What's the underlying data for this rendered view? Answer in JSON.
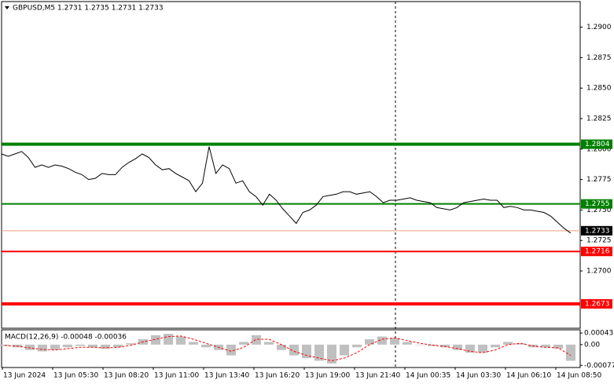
{
  "chart_data": {
    "type": "line",
    "title": "GBPUSD,M5  1.2731 1.2735 1.2731 1.2733",
    "color": "#000000",
    "values": [
      1.2796,
      1.2794,
      1.2796,
      1.2798,
      1.2793,
      1.2785,
      1.2787,
      1.2785,
      1.2787,
      1.2786,
      1.2784,
      1.2781,
      1.2779,
      1.2775,
      1.2776,
      1.278,
      1.2779,
      1.2779,
      1.2785,
      1.2789,
      1.2792,
      1.2796,
      1.2793,
      1.2787,
      1.2783,
      1.2784,
      1.278,
      1.2777,
      1.2774,
      1.2765,
      1.2772,
      1.2802,
      1.278,
      1.2787,
      1.2784,
      1.2772,
      1.2774,
      1.2765,
      1.2761,
      1.2754,
      1.2763,
      1.2758,
      1.2751,
      1.2745,
      1.2739,
      1.2748,
      1.275,
      1.2754,
      1.2761,
      1.2762,
      1.2763,
      1.2765,
      1.2765,
      1.2763,
      1.2764,
      1.2765,
      1.2761,
      1.2756,
      1.2758,
      1.2758,
      1.2759,
      1.276,
      1.2758,
      1.2757,
      1.2756,
      1.2752,
      1.2751,
      1.275,
      1.2752,
      1.2756,
      1.2757,
      1.2758,
      1.2759,
      1.2758,
      1.2758,
      1.2752,
      1.2753,
      1.2752,
      1.275,
      1.275,
      1.2749,
      1.2748,
      1.2745,
      1.274,
      1.2735,
      1.2731
    ],
    "ylim": [
      1.2653,
      1.2921
    ],
    "yticks": [
      {
        "value": 1.29,
        "label": "1.2900"
      },
      1.2875,
      {
        "value": 1.285,
        "label": "1.2850"
      },
      1.2825,
      {
        "value": 1.28,
        "label": "1.2800"
      },
      1.2775,
      {
        "value": 1.275,
        "label": "1.2750"
      },
      1.2725,
      {
        "value": 1.27,
        "label": "1.2700"
      }
    ],
    "levels": [
      {
        "value": 1.2804,
        "color": "#008000"
      },
      {
        "value": 1.2755,
        "color": "#008000"
      },
      {
        "value": 1.2716,
        "color": "#ff0000"
      },
      {
        "value": 1.2673,
        "color": "#ff0000"
      }
    ],
    "current_price": {
      "value": 1.2733,
      "color": "#e8a07c"
    },
    "time_labels": [
      "13 Jun 2024",
      "13 Jun 05:30",
      "13 Jun 08:20",
      "13 Jun 11:00",
      "13 Jun 13:40",
      "13 Jun 16:20",
      "13 Jun 19:00",
      "13 Jun 21:40",
      "14 Jun 00:35",
      "14 Jun 03:30",
      "14 Jun 06:10",
      "14 Jun 08:50"
    ],
    "macd": {
      "title": "MACD(12,26,9) -0.00048 -0.00036",
      "histogram_color": "#c0c0c0",
      "signal_color": "#ff0000",
      "histogram": [
        -5e-05,
        -0.0001,
        -0.0002,
        -0.00025,
        -0.0002,
        -0.0001,
        -5e-05,
        -0.0001,
        -0.00015,
        -0.0001,
        5e-05,
        0.0002,
        0.00035,
        0.0004,
        0.0003,
        0.0001,
        -0.0001,
        -0.0002,
        -0.0004,
        0.0001,
        0.00035,
        0.0001,
        -0.0002,
        -0.0004,
        -0.0005,
        -0.0006,
        -0.0007,
        -0.0004,
        -0.0001,
        0.0002,
        0.0003,
        0.00025,
        0.0001,
        0,
        -5e-05,
        -0.0001,
        -0.0002,
        -0.0003,
        -0.0003,
        -0.0001,
        0.0001,
        5e-05,
        -0.0001,
        -0.0001,
        -0.00015,
        -0.0006
      ],
      "signal": [
        -3e-05,
        -6e-05,
        -0.00012,
        -0.00018,
        -0.0002,
        -0.00015,
        -0.0001,
        -0.0001,
        -0.00012,
        -0.0001,
        -3e-05,
        0.0001,
        0.0002,
        0.0003,
        0.00032,
        0.0002,
        5e-05,
        -0.0001,
        -0.00025,
        -0.0001,
        0.0002,
        0.0002,
        0,
        -0.00025,
        -0.0004,
        -0.0005,
        -0.0006,
        -0.0005,
        -0.0003,
        0,
        0.0002,
        0.00025,
        0.00015,
        5e-05,
        -2e-05,
        -7e-05,
        -0.00015,
        -0.00025,
        -0.0003,
        -0.0002,
        0,
        5e-05,
        -5e-05,
        -0.0001,
        -0.00012,
        -0.0004
      ],
      "ylim": [
        -0.00085,
        0.00055
      ],
      "yticks": [
        0.00043,
        {
          "value": 0,
          "label": "0.00"
        },
        -0.00077
      ]
    }
  }
}
